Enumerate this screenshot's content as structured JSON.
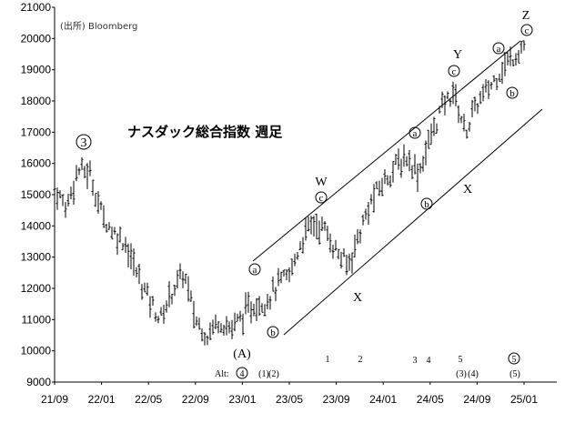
{
  "chart_data": {
    "type": "candlestick",
    "title": "ナスダック総合指数 週足",
    "source": "(出所) Bloomberg",
    "x_tick_labels": [
      "21/09",
      "22/01",
      "22/05",
      "22/09",
      "23/01",
      "23/05",
      "23/09",
      "24/01",
      "24/05",
      "24/09",
      "25/01"
    ],
    "y_tick_labels": [
      9000,
      10000,
      11000,
      12000,
      13000,
      14000,
      15000,
      16000,
      17000,
      18000,
      19000,
      20000,
      21000
    ],
    "ylim": [
      9000,
      21000
    ],
    "x": [
      "2021-09",
      "2021-10",
      "2021-11",
      "2021-12",
      "2022-01",
      "2022-02",
      "2022-03",
      "2022-04",
      "2022-05",
      "2022-06",
      "2022-07",
      "2022-08",
      "2022-09",
      "2022-10",
      "2022-11",
      "2022-12",
      "2023-01",
      "2023-02",
      "2023-03",
      "2023-04",
      "2023-05",
      "2023-06",
      "2023-07",
      "2023-08",
      "2023-09",
      "2023-10",
      "2023-11",
      "2023-12",
      "2024-01",
      "2024-02",
      "2024-03",
      "2024-04",
      "2024-05",
      "2024-06",
      "2024-07",
      "2024-08",
      "2024-09",
      "2024-10",
      "2024-11",
      "2024-12",
      "2025-01"
    ],
    "series": [
      {
        "values": [
          15200,
          14600,
          15800,
          15700,
          14400,
          13800,
          13500,
          12500,
          11700,
          11000,
          11900,
          12500,
          11000,
          10500,
          11000,
          10700,
          11100,
          11500,
          11600,
          12100,
          12400,
          13500,
          14100,
          13900,
          13200,
          12700,
          13800,
          14800,
          15400,
          15900,
          16200,
          15700,
          16800,
          17800,
          18300,
          17000,
          17900,
          18400,
          19000,
          19400,
          19800
        ]
      }
    ],
    "channel_upper": {
      "start": [
        "2023-02",
        12700
      ],
      "end": [
        "2025-01",
        20100
      ]
    },
    "channel_lower": {
      "start": [
        "2023-05",
        10500
      ],
      "end": [
        "2025-01",
        17800
      ]
    },
    "annotations": {
      "wave_3": "3",
      "wave_A": "(A)",
      "wave_W": "W",
      "wave_X1": "X",
      "wave_Y": "Y",
      "wave_X2": "X",
      "wave_Z": "Z",
      "circ_a": "a",
      "circ_b": "b",
      "circ_c": "c",
      "alt_label": "Alt:",
      "alt_4": "4",
      "alt_5": "5",
      "count_1": "1",
      "count_2": "2",
      "count_3": "3",
      "count_4": "4",
      "count_5": "5",
      "paren_1": "(1)",
      "paren_2": "(2)",
      "paren_3": "(3)",
      "paren_4": "(4)",
      "paren_5": "(5)"
    }
  }
}
